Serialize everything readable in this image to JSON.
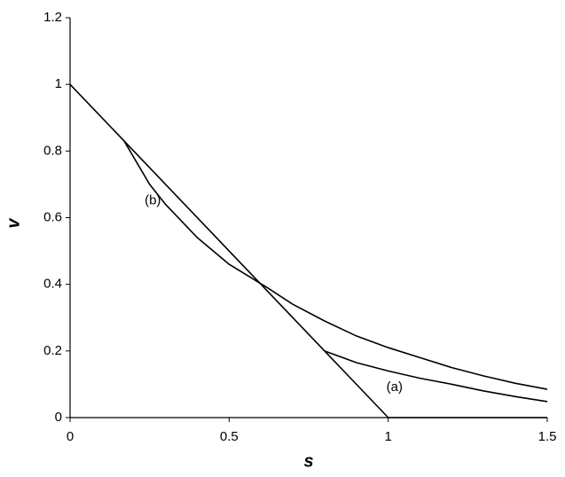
{
  "chart_data": {
    "type": "line",
    "xlabel": "s",
    "ylabel": "v",
    "xlim": [
      0,
      1.5
    ],
    "xticks": [
      0,
      0.5,
      1,
      1.5
    ],
    "ylim": [
      0,
      1.2
    ],
    "yticks": [
      0,
      0.2,
      0.4,
      0.6,
      0.8,
      1,
      1.2
    ],
    "grid": false,
    "series": [
      {
        "color": "#000000",
        "x": [
          0,
          1,
          1.5
        ],
        "values": [
          1,
          0,
          0
        ]
      },
      {
        "color": "#000000",
        "x": [
          0.17,
          0.25,
          0.3,
          0.4,
          0.5,
          0.62,
          0.7,
          0.8,
          0.9,
          1.0,
          1.1,
          1.2,
          1.3,
          1.4,
          1.5
        ],
        "values": [
          0.83,
          0.7,
          0.64,
          0.54,
          0.46,
          0.39,
          0.34,
          0.29,
          0.245,
          0.21,
          0.18,
          0.15,
          0.125,
          0.103,
          0.085
        ]
      },
      {
        "color": "#000000",
        "x": [
          0.8,
          0.9,
          1.0,
          1.1,
          1.2,
          1.3,
          1.4,
          1.5
        ],
        "values": [
          0.2,
          0.165,
          0.14,
          0.118,
          0.1,
          0.08,
          0.063,
          0.048
        ]
      }
    ],
    "annotations": [
      {
        "text": "(a)",
        "x": 1.02,
        "y": 0.09
      },
      {
        "text": "(b)",
        "x": 0.26,
        "y": 0.65
      }
    ]
  }
}
